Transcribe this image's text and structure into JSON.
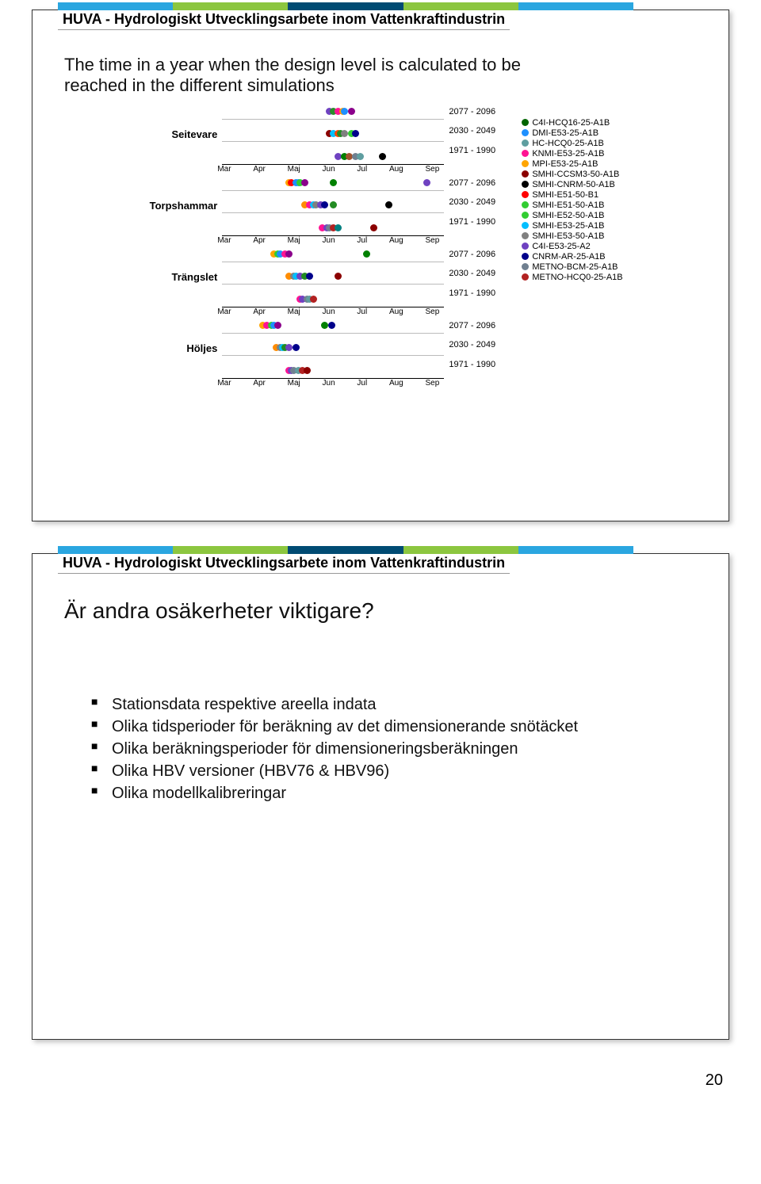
{
  "banner_text": "HUVA - Hydrologiskt Utvecklingsarbete inom Vattenkraftindustrin",
  "banner_colors": [
    "#2aa6e0",
    "#2aa6e0",
    "#8cc63f",
    "#8cc63f",
    "#004b73",
    "#004b73",
    "#8cc63f",
    "#8cc63f",
    "#2aa6e0",
    "#2aa6e0"
  ],
  "slide1": {
    "body": "The time in a year when the design level is calculated to be reached in the different simulations",
    "x_labels": [
      "Mar",
      "Apr",
      "Maj",
      "Jun",
      "Jul",
      "Aug",
      "Sep"
    ],
    "period_labels": [
      "2077 - 2096",
      "2030 - 2049",
      "1971 - 1990"
    ],
    "rows": [
      {
        "name": "Seitevare",
        "tracks": [
          [
            {
              "x": 0.48,
              "c": "#6f42c1"
            },
            {
              "x": 0.5,
              "c": "#2b8c2b"
            },
            {
              "x": 0.52,
              "c": "#ff1493"
            },
            {
              "x": 0.54,
              "c": "#ffa500"
            },
            {
              "x": 0.55,
              "c": "#1e90ff"
            },
            {
              "x": 0.58,
              "c": "#8b008b"
            }
          ],
          [
            {
              "x": 0.48,
              "c": "#8b0000"
            },
            {
              "x": 0.5,
              "c": "#00bfff"
            },
            {
              "x": 0.52,
              "c": "#ff4500"
            },
            {
              "x": 0.53,
              "c": "#228b22"
            },
            {
              "x": 0.55,
              "c": "#808080"
            },
            {
              "x": 0.58,
              "c": "#32cd32"
            },
            {
              "x": 0.6,
              "c": "#00008b"
            }
          ],
          [
            {
              "x": 0.52,
              "c": "#6f42c1"
            },
            {
              "x": 0.55,
              "c": "#008000"
            },
            {
              "x": 0.57,
              "c": "#a0522d"
            },
            {
              "x": 0.6,
              "c": "#708090"
            },
            {
              "x": 0.62,
              "c": "#5f9ea0"
            },
            {
              "x": 0.72,
              "c": "#000"
            }
          ]
        ]
      },
      {
        "name": "Torpshammar",
        "tracks": [
          [
            {
              "x": 0.3,
              "c": "#ffa500"
            },
            {
              "x": 0.31,
              "c": "#ff0000"
            },
            {
              "x": 0.33,
              "c": "#1e90ff"
            },
            {
              "x": 0.34,
              "c": "#1e90ff"
            },
            {
              "x": 0.35,
              "c": "#32cd32"
            },
            {
              "x": 0.37,
              "c": "#8b008b"
            },
            {
              "x": 0.5,
              "c": "#008000"
            },
            {
              "x": 0.92,
              "c": "#6f42c1"
            }
          ],
          [
            {
              "x": 0.37,
              "c": "#ff8c00"
            },
            {
              "x": 0.39,
              "c": "#ff1493"
            },
            {
              "x": 0.41,
              "c": "#00bfff"
            },
            {
              "x": 0.42,
              "c": "#808080"
            },
            {
              "x": 0.44,
              "c": "#6f42c1"
            },
            {
              "x": 0.46,
              "c": "#00008b"
            },
            {
              "x": 0.5,
              "c": "#228b22"
            },
            {
              "x": 0.75,
              "c": "#000"
            }
          ],
          [
            {
              "x": 0.45,
              "c": "#ff1493"
            },
            {
              "x": 0.47,
              "c": "#6f42c1"
            },
            {
              "x": 0.48,
              "c": "#708090"
            },
            {
              "x": 0.5,
              "c": "#b22222"
            },
            {
              "x": 0.52,
              "c": "#008080"
            },
            {
              "x": 0.68,
              "c": "#8b0000"
            }
          ]
        ]
      },
      {
        "name": "Trängslet",
        "tracks": [
          [
            {
              "x": 0.23,
              "c": "#ffa500"
            },
            {
              "x": 0.25,
              "c": "#32cd32"
            },
            {
              "x": 0.26,
              "c": "#1e90ff"
            },
            {
              "x": 0.28,
              "c": "#ff1493"
            },
            {
              "x": 0.3,
              "c": "#8b008b"
            },
            {
              "x": 0.65,
              "c": "#008000"
            }
          ],
          [
            {
              "x": 0.3,
              "c": "#ff8c00"
            },
            {
              "x": 0.32,
              "c": "#808080"
            },
            {
              "x": 0.33,
              "c": "#00bfff"
            },
            {
              "x": 0.35,
              "c": "#6f42c1"
            },
            {
              "x": 0.37,
              "c": "#228b22"
            },
            {
              "x": 0.39,
              "c": "#00008b"
            },
            {
              "x": 0.52,
              "c": "#8b0000"
            }
          ],
          [
            {
              "x": 0.35,
              "c": "#ff1493"
            },
            {
              "x": 0.36,
              "c": "#6f42c1"
            },
            {
              "x": 0.38,
              "c": "#708090"
            },
            {
              "x": 0.39,
              "c": "#5f9ea0"
            },
            {
              "x": 0.41,
              "c": "#b22222"
            }
          ]
        ]
      },
      {
        "name": "Höljes",
        "tracks": [
          [
            {
              "x": 0.18,
              "c": "#ffa500"
            },
            {
              "x": 0.2,
              "c": "#ff1493"
            },
            {
              "x": 0.22,
              "c": "#32cd32"
            },
            {
              "x": 0.23,
              "c": "#1e90ff"
            },
            {
              "x": 0.25,
              "c": "#8b008b"
            },
            {
              "x": 0.46,
              "c": "#008000"
            },
            {
              "x": 0.49,
              "c": "#00008b"
            }
          ],
          [
            {
              "x": 0.24,
              "c": "#ff8c00"
            },
            {
              "x": 0.26,
              "c": "#808080"
            },
            {
              "x": 0.27,
              "c": "#00bfff"
            },
            {
              "x": 0.28,
              "c": "#228b22"
            },
            {
              "x": 0.3,
              "c": "#6f42c1"
            },
            {
              "x": 0.33,
              "c": "#00008b"
            }
          ],
          [
            {
              "x": 0.3,
              "c": "#ff1493"
            },
            {
              "x": 0.31,
              "c": "#6f42c1"
            },
            {
              "x": 0.32,
              "c": "#708090"
            },
            {
              "x": 0.34,
              "c": "#5f9ea0"
            },
            {
              "x": 0.36,
              "c": "#b22222"
            },
            {
              "x": 0.38,
              "c": "#8b0000"
            }
          ]
        ]
      }
    ],
    "legend": [
      {
        "c": "#006400",
        "t": "C4I-HCQ16-25-A1B"
      },
      {
        "c": "#1e90ff",
        "t": "DMI-E53-25-A1B"
      },
      {
        "c": "#5f9ea0",
        "t": "HC-HCQ0-25-A1B"
      },
      {
        "c": "#ff1493",
        "t": "KNMI-E53-25-A1B"
      },
      {
        "c": "#ffa500",
        "t": "MPI-E53-25-A1B"
      },
      {
        "c": "#8b0000",
        "t": "SMHI-CCSM3-50-A1B"
      },
      {
        "c": "#000000",
        "t": "SMHI-CNRM-50-A1B"
      },
      {
        "c": "#ff0000",
        "t": "SMHI-E51-50-B1"
      },
      {
        "c": "#32cd32",
        "t": "SMHI-E51-50-A1B"
      },
      {
        "c": "#32cd32",
        "t": "SMHI-E52-50-A1B"
      },
      {
        "c": "#00bfff",
        "t": "SMHI-E53-25-A1B"
      },
      {
        "c": "#808080",
        "t": "SMHI-E53-50-A1B"
      },
      {
        "c": "#6f42c1",
        "t": "C4I-E53-25-A2"
      },
      {
        "c": "#00008b",
        "t": "CNRM-AR-25-A1B"
      },
      {
        "c": "#708090",
        "t": "METNO-BCM-25-A1B"
      },
      {
        "c": "#b22222",
        "t": "METNO-HCQ0-25-A1B"
      }
    ]
  },
  "slide2": {
    "heading": "Är andra osäkerheter viktigare?",
    "bullets": [
      "Stationsdata respektive areella indata",
      "Olika tidsperioder för beräkning av det dimensionerande snötäcket",
      "Olika beräkningsperioder för dimensioneringsberäkningen",
      "Olika HBV versioner (HBV76 & HBV96)",
      "Olika modellkalibreringar"
    ]
  },
  "page_number": "20"
}
